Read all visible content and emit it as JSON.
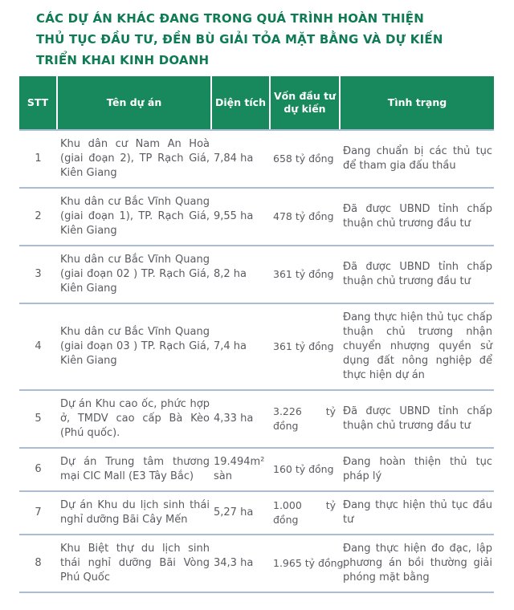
{
  "title": {
    "lines": [
      "CÁC DỰ ÁN KHÁC ĐANG TRONG QUÁ TRÌNH HOÀN THIỆN",
      "THỦ TỤC ĐẦU TƯ, ĐỀN BÙ GIẢI TỎA MẶT BẰNG VÀ DỰ KIẾN",
      "TRIỂN KHAI KINH DOANH"
    ],
    "color": "#0e7b54"
  },
  "table": {
    "header_bg": "#18895c",
    "header_text_color": "#ffffff",
    "divider_color": "#a9bdd6",
    "body_text_color": "#595b60",
    "columns": [
      {
        "label": "STT"
      },
      {
        "label": "Tên dự án"
      },
      {
        "label": "Diện tích"
      },
      {
        "label": "Vốn đầu tư\ndự kiến"
      },
      {
        "label": "Tình trạng"
      }
    ],
    "rows": [
      {
        "stt": "1",
        "name": "Khu dân cư Nam An Hoà (giai đoạn 2), TP Rạch Giá, Kiên Giang",
        "area": "7,84 ha",
        "capital": "658 tỷ đồng",
        "status": "Đang chuẩn bị các thủ tục để tham gia đấu thầu"
      },
      {
        "stt": "2",
        "name": "Khu dân cư Bắc Vĩnh Quang (giai đoạn 1), TP. Rạch Giá, Kiên Giang",
        "area": "9,55 ha",
        "capital": "478 tỷ đồng",
        "status": "Đã được UBND tỉnh chấp thuận chủ trương đầu tư"
      },
      {
        "stt": "3",
        "name": "Khu dân cư Bắc Vĩnh Quang (giai đoạn 02 ) TP. Rạch Giá, Kiên Giang",
        "area": "8,2 ha",
        "capital": "361 tỷ đồng",
        "status": "Đã được UBND tỉnh chấp thuận chủ trương đầu tư"
      },
      {
        "stt": "4",
        "name": "Khu dân cư Bắc Vĩnh Quang (giai đoạn 03 ) TP. Rạch Giá, Kiên Giang",
        "area": "7,4 ha",
        "capital": "361 tỷ đồng",
        "status": "Đang thực hiện thủ tục chấp thuận chủ trương nhận chuyển nhượng quyền sử dụng đất nông nghiệp để thực hiện dự án"
      },
      {
        "stt": "5",
        "name": "Dự án Khu cao ốc, phức hợp ở, TMDV cao cấp Bà Kèo (Phú quốc).",
        "area": "4,33 ha",
        "capital": "3.226 tỷ đồng",
        "status": "Đã được UBND tỉnh chấp thuận chủ trương đầu tư"
      },
      {
        "stt": "6",
        "name": "Dự án Trung tâm thương mại CIC Mall (E3 Tây Bắc)",
        "area": "19.494m² sàn",
        "capital": "160 tỷ đồng",
        "status": "Đang hoàn thiện thủ tục pháp lý"
      },
      {
        "stt": "7",
        "name": "Dự án Khu du lịch sinh thái nghỉ dưỡng Bãi Cây Mến",
        "area": "5,27 ha",
        "capital": "1.000 tỷ đồng",
        "status": "Đang thực hiện thủ tục đầu tư"
      },
      {
        "stt": "8",
        "name": "Khu Biệt thự du lịch sinh thái nghỉ dưỡng Bãi Vòng Phú Quốc",
        "area": "34,3 ha",
        "capital": "1.965 tỷ đồng",
        "status": "Đang thực hiện đo đạc, lập phương án bồi thường giải phóng mặt bằng"
      }
    ]
  }
}
